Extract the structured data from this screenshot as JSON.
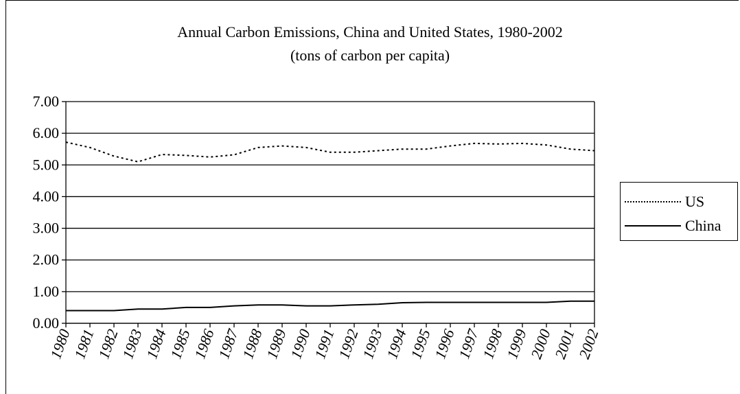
{
  "chart_data": {
    "type": "line",
    "title": "Annual Carbon Emissions, China and United States, 1980-2002",
    "subtitle": "(tons of carbon per capita)",
    "xlabel": "",
    "ylabel": "",
    "categories": [
      "1980",
      "1981",
      "1982",
      "1983",
      "1984",
      "1985",
      "1986",
      "1987",
      "1988",
      "1989",
      "1990",
      "1991",
      "1992",
      "1993",
      "1994",
      "1995",
      "1996",
      "1997",
      "1998",
      "1999",
      "2000",
      "2001",
      "2002"
    ],
    "ylim": [
      0,
      7
    ],
    "yticks": [
      "0.00",
      "1.00",
      "2.00",
      "3.00",
      "4.00",
      "5.00",
      "6.00",
      "7.00"
    ],
    "grid": true,
    "legend_position": "right",
    "series": [
      {
        "name": "US",
        "style": "dotted",
        "color": "#000000",
        "values": [
          5.72,
          5.55,
          5.28,
          5.1,
          5.33,
          5.3,
          5.25,
          5.32,
          5.55,
          5.6,
          5.55,
          5.4,
          5.4,
          5.45,
          5.5,
          5.5,
          5.6,
          5.68,
          5.66,
          5.68,
          5.63,
          5.5,
          5.45
        ]
      },
      {
        "name": "China",
        "style": "solid",
        "color": "#000000",
        "values": [
          0.4,
          0.4,
          0.4,
          0.45,
          0.45,
          0.5,
          0.5,
          0.55,
          0.58,
          0.58,
          0.55,
          0.55,
          0.58,
          0.6,
          0.65,
          0.66,
          0.66,
          0.66,
          0.66,
          0.66,
          0.66,
          0.7,
          0.7
        ]
      }
    ]
  }
}
